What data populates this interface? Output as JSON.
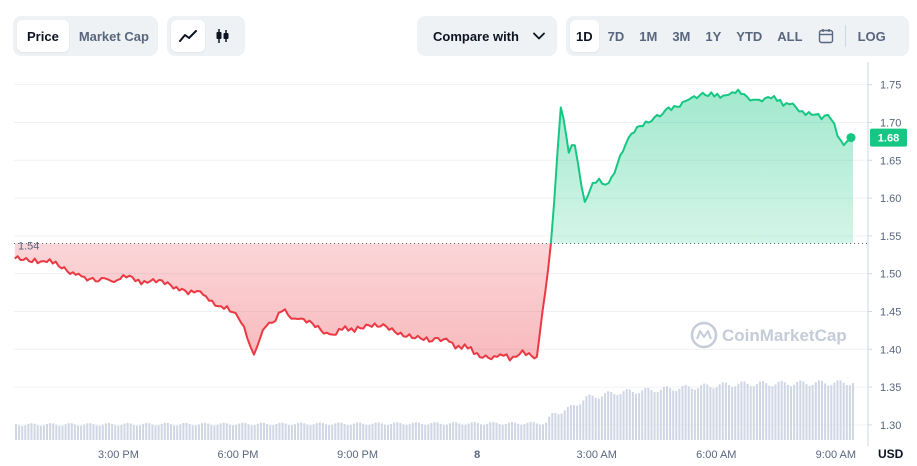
{
  "toolbar": {
    "type_options": [
      "Price",
      "Market Cap"
    ],
    "type_selected": "Price",
    "style_options": [
      "line-chart-icon",
      "candlestick-icon"
    ],
    "style_selected": "line-chart-icon",
    "compare_label": "Compare with",
    "ranges": [
      "1D",
      "7D",
      "1M",
      "3M",
      "1Y",
      "YTD",
      "ALL"
    ],
    "range_selected": "1D",
    "calendar_icon": "calendar-icon",
    "log_label": "LOG"
  },
  "watermark": "CoinMarketCap",
  "chart_data": {
    "type": "area",
    "currency": "USD",
    "reference_label": "1.54",
    "reference_value": 1.54,
    "current_label": "1.68",
    "current_value": 1.68,
    "ylim": [
      1.28,
      1.78
    ],
    "y_ticks": [
      "1.75",
      "1.70",
      "1.65",
      "1.60",
      "1.55",
      "1.50",
      "1.45",
      "1.40",
      "1.35",
      "1.30"
    ],
    "x_tick_labels": [
      "3:00 PM",
      "6:00 PM",
      "9:00 PM",
      "8",
      "3:00 AM",
      "6:00 AM",
      "9:00 AM"
    ],
    "x_range": [
      12.38,
      33.43
    ],
    "x_unit_note": "hours from 00:00 of the first day",
    "colors": {
      "up": "#16c784",
      "down": "#ea3943",
      "volume": "#cfd6e4",
      "grid": "#eff2f5"
    },
    "price": {
      "x": [
        12.4,
        12.9,
        13.5,
        14.0,
        14.5,
        15.2,
        15.8,
        16.6,
        17.2,
        17.8,
        18.15,
        18.4,
        18.7,
        19.1,
        19.5,
        20.3,
        21.0,
        21.5,
        22.3,
        22.8,
        23.3,
        24.0,
        24.5,
        24.9,
        25.3,
        25.5,
        25.85,
        26.1,
        26.3,
        26.45,
        26.7,
        26.9,
        27.3,
        27.8,
        28.3,
        28.8,
        29.3,
        29.8,
        30.4,
        31.0,
        31.6,
        32.0,
        32.4,
        32.8,
        33.2,
        33.43
      ],
      "y": [
        1.52,
        1.52,
        1.51,
        1.5,
        1.49,
        1.495,
        1.49,
        1.48,
        1.47,
        1.45,
        1.43,
        1.393,
        1.43,
        1.45,
        1.44,
        1.42,
        1.43,
        1.43,
        1.42,
        1.41,
        1.41,
        1.395,
        1.39,
        1.39,
        1.395,
        1.39,
        1.54,
        1.72,
        1.66,
        1.67,
        1.595,
        1.62,
        1.62,
        1.68,
        1.7,
        1.72,
        1.73,
        1.735,
        1.74,
        1.73,
        1.73,
        1.72,
        1.71,
        1.71,
        1.67,
        1.68
      ]
    },
    "volume_note": "relative bar heights, 0-1",
    "volume": {
      "x": [
        12.4,
        25.7,
        25.9,
        26.3,
        26.7,
        27.5,
        28.5,
        29.5,
        30.5,
        33.43
      ],
      "v": [
        0.22,
        0.24,
        0.38,
        0.45,
        0.6,
        0.68,
        0.72,
        0.76,
        0.8,
        0.82
      ]
    }
  }
}
